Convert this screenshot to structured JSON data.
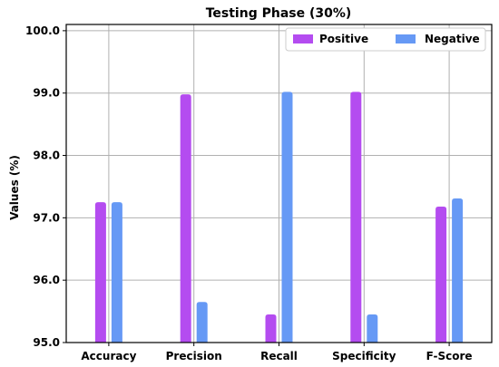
{
  "chart_data": {
    "type": "bar",
    "title": "Testing Phase (30%)",
    "xlabel": "",
    "ylabel": "Values (%)",
    "categories": [
      "Accuracy",
      "Precision",
      "Recall",
      "Specificity",
      "F-Score"
    ],
    "series": [
      {
        "name": "Positive",
        "values": [
          97.25,
          98.98,
          95.45,
          99.02,
          97.18
        ],
        "color": "#b44cf0"
      },
      {
        "name": "Negative",
        "values": [
          97.25,
          95.65,
          99.02,
          95.45,
          97.31
        ],
        "color": "#6699f5"
      }
    ],
    "ylim": [
      95.0,
      100.1
    ],
    "yticks": [
      "95.0",
      "96.0",
      "97.0",
      "98.0",
      "99.0",
      "100.0"
    ],
    "grid": true,
    "legend": "top-right"
  }
}
